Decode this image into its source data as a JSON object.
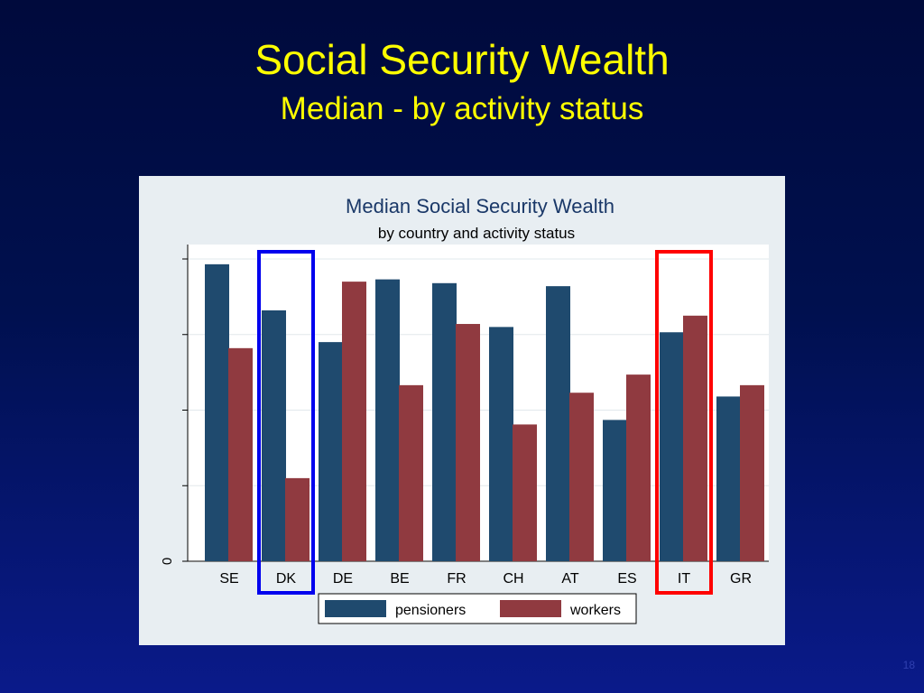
{
  "slide": {
    "title": "Social Security Wealth",
    "subtitle": "Median - by activity status",
    "page_number": "18"
  },
  "colors": {
    "pensioners": "#1f4a6e",
    "workers": "#903a40",
    "highlight_dk": "#0000ee",
    "highlight_it": "#ff0000"
  },
  "chart_data": {
    "type": "bar",
    "title": "Median Social Security Wealth",
    "subtitle": "by country and activity status",
    "categories": [
      "SE",
      "DK",
      "DE",
      "BE",
      "FR",
      "CH",
      "AT",
      "ES",
      "IT",
      "GR"
    ],
    "series": [
      {
        "name": "pensioners",
        "values": [
          3.93,
          3.32,
          2.9,
          3.73,
          3.68,
          3.1,
          3.64,
          1.87,
          3.03,
          2.18
        ]
      },
      {
        "name": "workers",
        "values": [
          2.82,
          1.1,
          3.7,
          2.33,
          3.14,
          1.81,
          2.23,
          2.47,
          3.25,
          2.33
        ]
      }
    ],
    "ylim": [
      0,
      4.0
    ],
    "yticks": [
      0,
      1,
      2,
      3,
      4
    ],
    "ytick_labels": [
      "0",
      "",
      "",
      "",
      ""
    ],
    "xlabel": "",
    "ylabel": "",
    "grid": true,
    "legend_position": "bottom",
    "highlighted_categories": [
      "DK",
      "IT"
    ]
  }
}
